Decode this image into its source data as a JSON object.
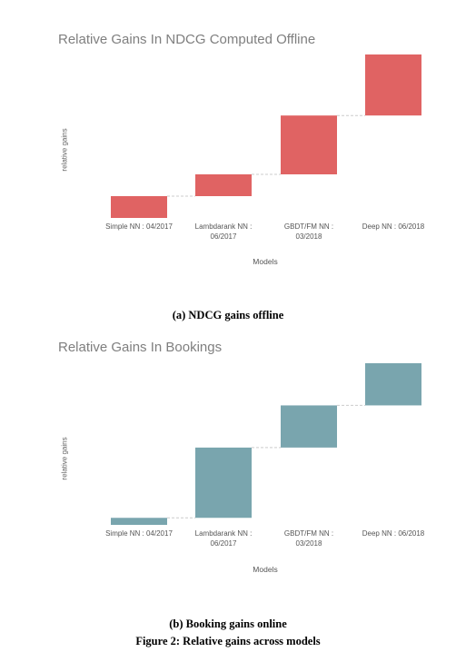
{
  "chart_data": [
    {
      "type": "waterfall",
      "title": "Relative Gains In NDCG Computed Offline",
      "xlabel": "Models",
      "ylabel": "relative gains",
      "categories": [
        [
          "Simple NN : 04/2017"
        ],
        [
          "Lambdarank NN :",
          "06/2017"
        ],
        [
          "GBDT/FM NN :",
          "03/2018"
        ],
        [
          "Deep NN : 06/2018"
        ]
      ],
      "values": [
        1.0,
        1.0,
        2.7,
        2.8
      ],
      "color": "#e06363",
      "ylim": [
        0,
        7.5
      ],
      "grid": false,
      "legend": "none"
    },
    {
      "type": "waterfall",
      "title": "Relative Gains In Bookings",
      "xlabel": "Models",
      "ylabel": "relative gains",
      "categories": [
        [
          "Simple NN : 04/2017"
        ],
        [
          "Lambdarank NN :",
          "06/2017"
        ],
        [
          "GBDT/FM NN :",
          "03/2018"
        ],
        [
          "Deep NN : 06/2018"
        ]
      ],
      "values": [
        0.3,
        3.0,
        1.8,
        1.8
      ],
      "color": "#79a5ae",
      "ylim": [
        0,
        6.9
      ],
      "grid": false,
      "legend": "none"
    }
  ],
  "captions": {
    "a": "(a) NDCG gains offline",
    "b": "(b) Booking gains online",
    "figure": "Figure 2: Relative gains across models"
  }
}
